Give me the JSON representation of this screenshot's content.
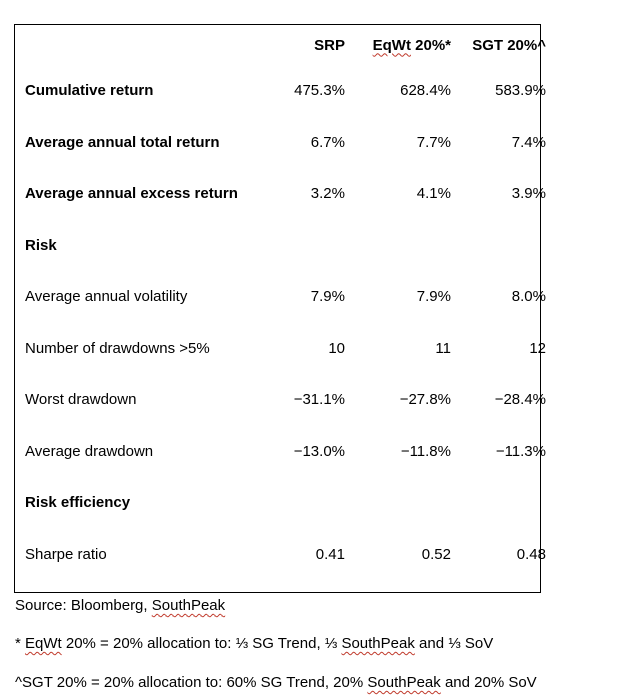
{
  "table": {
    "headers": [
      "",
      "SRP",
      "EqWt 20%*",
      "SGT 20%^"
    ],
    "header_parts": {
      "srp": "SRP",
      "eq_main": "EqWt",
      "eq_rest": " 20%*",
      "sgt": "SGT 20%^"
    },
    "rows": [
      {
        "label": "Cumulative return",
        "bold": true,
        "srp": "475.3%",
        "eqwt": "628.4%",
        "sgt": "583.9%"
      },
      {
        "label": "Average annual total return",
        "bold": true,
        "srp": "6.7%",
        "eqwt": "7.7%",
        "sgt": "7.4%"
      },
      {
        "label": "Average annual excess return",
        "bold": true,
        "srp": "3.2%",
        "eqwt": "4.1%",
        "sgt": "3.9%"
      },
      {
        "label": "Risk",
        "bold": true,
        "srp": "",
        "eqwt": "",
        "sgt": ""
      },
      {
        "label": "Average annual volatility",
        "bold": false,
        "srp": "7.9%",
        "eqwt": "7.9%",
        "sgt": "8.0%"
      },
      {
        "label": "Number of drawdowns >5%",
        "bold": false,
        "srp": "10",
        "eqwt": "11",
        "sgt": "12"
      },
      {
        "label": "Worst drawdown",
        "bold": false,
        "srp": "−31.1%",
        "eqwt": "−27.8%",
        "sgt": "−28.4%"
      },
      {
        "label": "Average drawdown",
        "bold": false,
        "srp": "−13.0%",
        "eqwt": "−11.8%",
        "sgt": "−11.3%"
      },
      {
        "label": "Risk efficiency",
        "bold": true,
        "srp": "",
        "eqwt": "",
        "sgt": ""
      },
      {
        "label": "Sharpe ratio",
        "bold": false,
        "srp": "0.41",
        "eqwt": "0.52",
        "sgt": "0.48"
      }
    ]
  },
  "notes": {
    "source": {
      "prefix": "Source: Bloomberg, ",
      "southpeak": "SouthPeak"
    },
    "eqwt": {
      "star": "* ",
      "eqwt": "EqWt",
      "text1": " 20% = 20% allocation to: ⅓ SG Trend, ⅓ ",
      "southpeak": "SouthPeak",
      "text2": " and ⅓ SoV"
    },
    "sgt": {
      "text1": "^SGT 20% = 20% allocation to: 60% SG Trend, 20% ",
      "southpeak": "SouthPeak",
      "text2": " and 20% SoV"
    }
  },
  "colors": {
    "spellcheck_underline": "#c0392b",
    "border": "#000000",
    "text": "#000000"
  }
}
